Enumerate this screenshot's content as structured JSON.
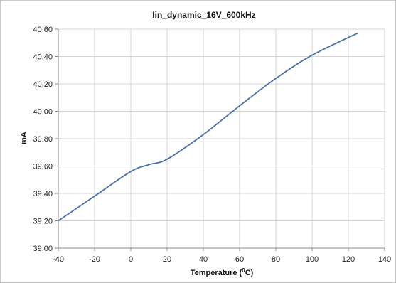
{
  "chart_data": {
    "type": "line",
    "title": "Iin_dynamic_16V_600kHz",
    "xlabel_prefix": "Temperature (",
    "xlabel_sup": "0",
    "xlabel_suffix": "C)",
    "ylabel": "mA",
    "xlim": [
      -40,
      140
    ],
    "ylim": [
      39.0,
      40.6
    ],
    "x_ticks": [
      -40,
      -20,
      0,
      20,
      40,
      60,
      80,
      100,
      120,
      140
    ],
    "x_tick_labels": [
      "-40",
      "-20",
      "0",
      "20",
      "40",
      "60",
      "80",
      "100",
      "120",
      "140"
    ],
    "y_ticks": [
      39.0,
      39.2,
      39.4,
      39.6,
      39.8,
      40.0,
      40.2,
      40.4,
      40.6
    ],
    "y_tick_labels": [
      "39.00",
      "39.20",
      "39.40",
      "39.60",
      "39.80",
      "40.00",
      "40.20",
      "40.40",
      "40.60"
    ],
    "grid": true,
    "legend": "none",
    "series": [
      {
        "color": "#4a72a6",
        "x": [
          -40,
          -20,
          0,
          10,
          20,
          40,
          60,
          80,
          100,
          125
        ],
        "y": [
          39.2,
          39.38,
          39.56,
          39.61,
          39.65,
          39.83,
          40.04,
          40.24,
          40.41,
          40.57
        ]
      }
    ]
  }
}
